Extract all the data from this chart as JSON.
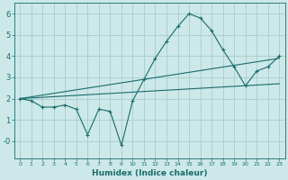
{
  "xlabel": "Humidex (Indice chaleur)",
  "bg_color": "#cce8e8",
  "grid_color": "#aacccc",
  "line_color": "#1a6b6b",
  "xlim": [
    -0.5,
    23.5
  ],
  "ylim": [
    -0.8,
    6.5
  ],
  "yticks": [
    0,
    1,
    2,
    3,
    4,
    5,
    6
  ],
  "ytick_labels": [
    "-0",
    "1",
    "2",
    "3",
    "4",
    "5",
    "6"
  ],
  "xticks": [
    0,
    1,
    2,
    3,
    4,
    5,
    6,
    7,
    8,
    9,
    10,
    11,
    12,
    13,
    14,
    15,
    16,
    17,
    18,
    19,
    20,
    21,
    22,
    23
  ],
  "series1_x": [
    0,
    1,
    2,
    3,
    4,
    5,
    6,
    7,
    8,
    9,
    10,
    11,
    12,
    13,
    14,
    15,
    16,
    17,
    18,
    19,
    20,
    21,
    22,
    23
  ],
  "series1_y": [
    2.0,
    1.9,
    1.6,
    1.6,
    1.7,
    1.5,
    0.3,
    1.5,
    1.4,
    -0.2,
    1.9,
    2.9,
    3.9,
    4.7,
    5.4,
    6.0,
    5.8,
    5.2,
    4.3,
    3.5,
    2.6,
    3.3,
    3.5,
    4.0
  ],
  "series2_x": [
    0,
    23
  ],
  "series2_y": [
    2.0,
    3.9
  ],
  "series3_x": [
    0,
    23
  ],
  "series3_y": [
    2.0,
    2.7
  ]
}
